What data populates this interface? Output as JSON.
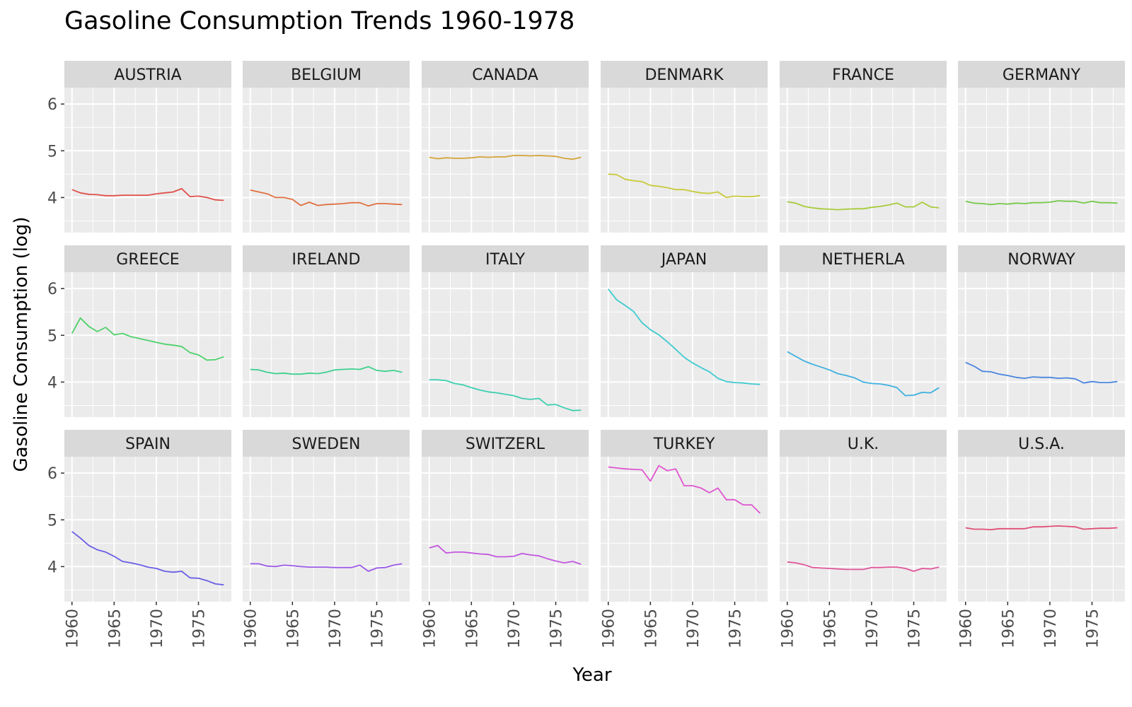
{
  "chart_data": {
    "type": "line",
    "title": "Gasoline Consumption Trends 1960-1978",
    "xlabel": "Year",
    "ylabel": "Gasoline Consumption (log)",
    "xlim": [
      1959.1,
      1978.9
    ],
    "ylim": [
      3.25,
      6.35
    ],
    "x_ticks": [
      1960,
      1965,
      1970,
      1975
    ],
    "y_ticks": [
      4,
      5,
      6
    ],
    "grid": true,
    "facet_layout": "3 rows x 6 columns",
    "x": [
      1960,
      1961,
      1962,
      1963,
      1964,
      1965,
      1966,
      1967,
      1968,
      1969,
      1970,
      1971,
      1972,
      1973,
      1974,
      1975,
      1976,
      1977,
      1978
    ],
    "panels": [
      {
        "name": "AUSTRIA",
        "color": "#e0504a",
        "values": [
          4.17,
          4.1,
          4.07,
          4.06,
          4.04,
          4.04,
          4.05,
          4.05,
          4.05,
          4.05,
          4.08,
          4.1,
          4.12,
          4.19,
          4.02,
          4.03,
          4.0,
          3.95,
          3.94
        ]
      },
      {
        "name": "BELGIUM",
        "color": "#e07040",
        "values": [
          4.16,
          4.12,
          4.08,
          4.0,
          4.0,
          3.96,
          3.83,
          3.9,
          3.83,
          3.85,
          3.86,
          3.87,
          3.89,
          3.89,
          3.82,
          3.87,
          3.87,
          3.86,
          3.85
        ]
      },
      {
        "name": "CANADA",
        "color": "#d4a43a",
        "values": [
          4.86,
          4.83,
          4.85,
          4.84,
          4.84,
          4.85,
          4.87,
          4.86,
          4.87,
          4.87,
          4.9,
          4.9,
          4.89,
          4.9,
          4.89,
          4.88,
          4.84,
          4.82,
          4.86
        ]
      },
      {
        "name": "DENMARK",
        "color": "#c9c93a",
        "values": [
          4.5,
          4.49,
          4.39,
          4.36,
          4.34,
          4.26,
          4.24,
          4.21,
          4.17,
          4.17,
          4.13,
          4.1,
          4.09,
          4.12,
          4.0,
          4.03,
          4.02,
          4.02,
          4.04
        ]
      },
      {
        "name": "FRANCE",
        "color": "#a6cc3a",
        "values": [
          3.91,
          3.88,
          3.81,
          3.78,
          3.76,
          3.75,
          3.74,
          3.75,
          3.76,
          3.76,
          3.79,
          3.81,
          3.84,
          3.88,
          3.8,
          3.8,
          3.9,
          3.8,
          3.78
        ]
      },
      {
        "name": "GERMANY",
        "color": "#76c94a",
        "values": [
          3.92,
          3.88,
          3.87,
          3.85,
          3.87,
          3.86,
          3.88,
          3.87,
          3.89,
          3.89,
          3.9,
          3.93,
          3.92,
          3.92,
          3.88,
          3.92,
          3.89,
          3.89,
          3.88
        ]
      },
      {
        "name": "GREECE",
        "color": "#4ed16a",
        "values": [
          5.04,
          5.37,
          5.19,
          5.08,
          5.17,
          5.01,
          5.04,
          4.97,
          4.93,
          4.89,
          4.85,
          4.81,
          4.79,
          4.76,
          4.63,
          4.58,
          4.47,
          4.48,
          4.54
        ]
      },
      {
        "name": "IRELAND",
        "color": "#3ed190",
        "values": [
          4.27,
          4.26,
          4.21,
          4.18,
          4.19,
          4.17,
          4.17,
          4.19,
          4.18,
          4.21,
          4.26,
          4.27,
          4.28,
          4.27,
          4.33,
          4.25,
          4.23,
          4.25,
          4.21
        ]
      },
      {
        "name": "ITALY",
        "color": "#3dcfb0",
        "values": [
          4.05,
          4.05,
          4.03,
          3.97,
          3.94,
          3.88,
          3.83,
          3.79,
          3.77,
          3.74,
          3.71,
          3.65,
          3.63,
          3.65,
          3.51,
          3.52,
          3.45,
          3.39,
          3.4
        ]
      },
      {
        "name": "JAPAN",
        "color": "#3ecad0",
        "values": [
          5.99,
          5.76,
          5.64,
          5.51,
          5.27,
          5.12,
          5.01,
          4.86,
          4.7,
          4.53,
          4.41,
          4.31,
          4.22,
          4.08,
          4.01,
          3.99,
          3.98,
          3.96,
          3.95
        ]
      },
      {
        "name": "NETHERLA",
        "color": "#3eb0e0",
        "values": [
          4.65,
          4.55,
          4.45,
          4.38,
          4.32,
          4.26,
          4.18,
          4.14,
          4.09,
          4.0,
          3.97,
          3.96,
          3.93,
          3.88,
          3.71,
          3.72,
          3.78,
          3.77,
          3.88
        ]
      },
      {
        "name": "NORWAY",
        "color": "#4a86e0",
        "values": [
          4.42,
          4.34,
          4.23,
          4.22,
          4.17,
          4.14,
          4.1,
          4.08,
          4.11,
          4.1,
          4.1,
          4.08,
          4.09,
          4.07,
          3.98,
          4.01,
          3.99,
          3.99,
          4.01
        ]
      },
      {
        "name": "SPAIN",
        "color": "#6a5ee6",
        "values": [
          4.75,
          4.61,
          4.45,
          4.36,
          4.31,
          4.22,
          4.11,
          4.08,
          4.04,
          3.99,
          3.96,
          3.9,
          3.88,
          3.9,
          3.76,
          3.75,
          3.7,
          3.63,
          3.61
        ]
      },
      {
        "name": "SWEDEN",
        "color": "#9a5ae6",
        "values": [
          4.06,
          4.06,
          4.01,
          4.0,
          4.03,
          4.02,
          4.0,
          3.99,
          3.99,
          3.99,
          3.98,
          3.98,
          3.98,
          4.03,
          3.9,
          3.97,
          3.98,
          4.03,
          4.06
        ]
      },
      {
        "name": "SWITZERL",
        "color": "#c455e0",
        "values": [
          4.4,
          4.45,
          4.29,
          4.31,
          4.31,
          4.29,
          4.27,
          4.26,
          4.21,
          4.21,
          4.22,
          4.28,
          4.25,
          4.23,
          4.17,
          4.12,
          4.08,
          4.11,
          4.05
        ]
      },
      {
        "name": "TURKEY",
        "color": "#e055d0",
        "values": [
          6.13,
          6.11,
          6.09,
          6.08,
          6.07,
          5.83,
          6.16,
          6.05,
          6.09,
          5.73,
          5.73,
          5.68,
          5.58,
          5.68,
          5.43,
          5.43,
          5.32,
          5.32,
          5.14
        ]
      },
      {
        "name": "U.K.",
        "color": "#e0559a",
        "values": [
          4.1,
          4.08,
          4.04,
          3.98,
          3.97,
          3.96,
          3.95,
          3.94,
          3.94,
          3.94,
          3.98,
          3.98,
          3.99,
          3.99,
          3.96,
          3.9,
          3.96,
          3.95,
          3.99
        ]
      },
      {
        "name": "U.S.A.",
        "color": "#e05078",
        "values": [
          4.83,
          4.8,
          4.8,
          4.79,
          4.81,
          4.81,
          4.81,
          4.81,
          4.85,
          4.85,
          4.86,
          4.87,
          4.86,
          4.85,
          4.8,
          4.81,
          4.82,
          4.82,
          4.83
        ]
      }
    ]
  }
}
